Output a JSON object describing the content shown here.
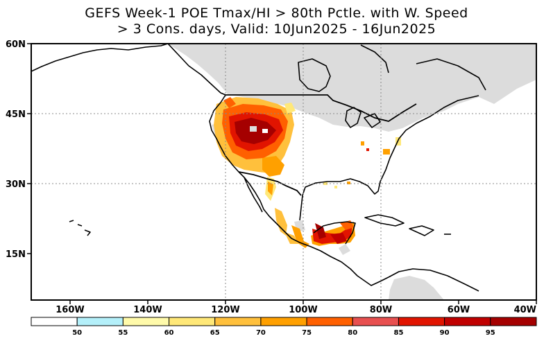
{
  "title": {
    "line1": "GEFS Week-1 POE Tmax/HI > 80th Pctle. with W. Speed",
    "line2": "> 3 Cons. days, Valid: 10Jun2025 - 16Jun2025"
  },
  "map": {
    "projection": "lat-lon (cylindrical)",
    "lon_range": [
      -170,
      -40
    ],
    "lat_range": [
      5,
      60
    ],
    "lat_ticks": [
      "60N",
      "45N",
      "30N",
      "15N"
    ],
    "lon_ticks": [
      "160W",
      "140W",
      "120W",
      "100W",
      "80W",
      "60W",
      "40W"
    ],
    "grid": "dotted",
    "no_data_color": "#dcdcdc"
  },
  "colorbar": {
    "labels": [
      "50",
      "55",
      "60",
      "65",
      "70",
      "75",
      "80",
      "85",
      "90",
      "95"
    ],
    "colors": [
      "#ffffff",
      "#b4f0fa",
      "#fffaaa",
      "#ffe878",
      "#ffc03c",
      "#ffa000",
      "#ff6000",
      "#e85050",
      "#e11400",
      "#c00000",
      "#a50000"
    ]
  }
}
